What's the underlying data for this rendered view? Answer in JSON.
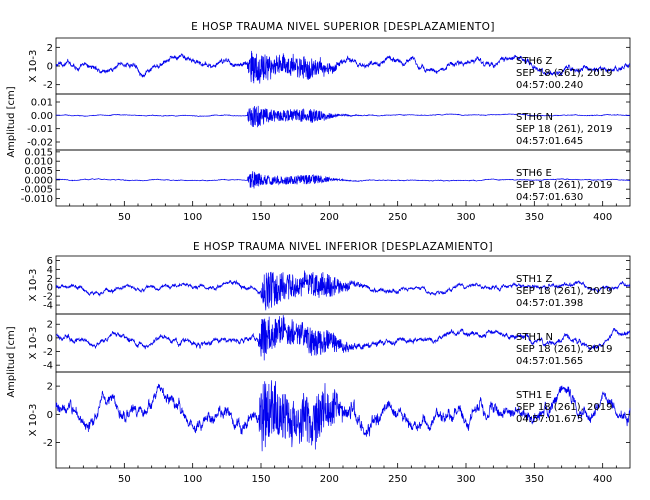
{
  "chart_data": [
    {
      "type": "line",
      "title": "E HOSP TRAUMA NIVEL SUPERIOR [DESPLAZAMIENTO]",
      "ylabel": "Amplitud [cm]",
      "xlim": [
        0,
        420
      ],
      "x_ticks": [
        "50",
        "100",
        "150",
        "200",
        "250",
        "300",
        "350",
        "400"
      ],
      "traces": [
        {
          "station": "STH6",
          "component": "Z",
          "date": "SEP 18 (261), 2019",
          "time": "04:57:00.240",
          "scale_label": "X 10-3",
          "ylim": [
            -3,
            3
          ],
          "y_ticks": [
            "2",
            "0",
            "-2"
          ],
          "noise_amp": 0.45,
          "burst_amp": 2.3,
          "burst_start": 140,
          "burst_decay": 22
        },
        {
          "station": "STH6",
          "component": "N",
          "date": "SEP 18 (261), 2019",
          "time": "04:57:01.645",
          "scale_label": "",
          "ylim": [
            -0.026,
            0.016
          ],
          "y_ticks": [
            "0.01",
            "0.00",
            "-0.01",
            "-0.02"
          ],
          "noise_amp": 0.0004,
          "burst_amp": 0.012,
          "burst_start": 140,
          "burst_decay": 18
        },
        {
          "station": "STH6",
          "component": "E",
          "date": "SEP 18 (261), 2019",
          "time": "04:57:01.630",
          "scale_label": "",
          "ylim": [
            -0.014,
            0.016
          ],
          "y_ticks": [
            "0.015",
            "0.010",
            "0.005",
            "0.000",
            "-0.005",
            "-0.010"
          ],
          "noise_amp": 0.0003,
          "burst_amp": 0.006,
          "burst_start": 140,
          "burst_decay": 18
        }
      ]
    },
    {
      "type": "line",
      "title": "E HOSP TRAUMA NIVEL INFERIOR [DESPLAZAMIENTO]",
      "ylabel": "Amplitud [cm]",
      "xlim": [
        0,
        420
      ],
      "x_ticks": [
        "50",
        "100",
        "150",
        "200",
        "250",
        "300",
        "350",
        "400"
      ],
      "traces": [
        {
          "station": "STH1",
          "component": "Z",
          "date": "SEP 18 (261), 2019",
          "time": "04:57:01.398",
          "scale_label": "X 10-3",
          "ylim": [
            -6,
            7
          ],
          "y_ticks": [
            "6",
            "4",
            "2",
            "0",
            "-2",
            "-4"
          ],
          "noise_amp": 0.7,
          "burst_amp": 5.5,
          "burst_start": 150,
          "burst_decay": 25
        },
        {
          "station": "STH1",
          "component": "N",
          "date": "SEP 18 (261), 2019",
          "time": "04:57:01.565",
          "scale_label": "X 10-3",
          "ylim": [
            -5,
            3.5
          ],
          "y_ticks": [
            "2",
            "0",
            "-2",
            "-4"
          ],
          "noise_amp": 0.6,
          "burst_amp": 3.6,
          "burst_start": 148,
          "burst_decay": 25
        },
        {
          "station": "STH1",
          "component": "E",
          "date": "SEP 18 (261), 2019",
          "time": "04:57:01.675",
          "scale_label": "X 10-3",
          "ylim": [
            -3.8,
            3
          ],
          "y_ticks": [
            "2",
            "0",
            "-2"
          ],
          "noise_amp": 0.7,
          "burst_amp": 2.8,
          "burst_start": 148,
          "burst_decay": 30
        }
      ]
    }
  ]
}
